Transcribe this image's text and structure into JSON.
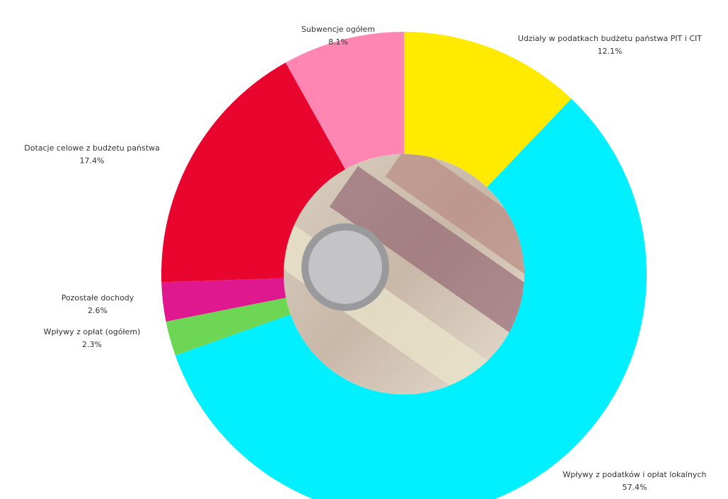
{
  "chart_data": {
    "type": "donut",
    "categories": [
      "Udziały w podatkach budżetu państwa PIT i CIT",
      "Wpływy z podatków i opłat lokalnych",
      "Wpływy z opłat (ogółem)",
      "Pozostałe dochody",
      "Dotacje celowe z budżetu państwa",
      "Subwencje ogółem"
    ],
    "values": [
      12.1,
      57.4,
      2.3,
      2.6,
      17.4,
      8.1
    ],
    "value_labels": [
      "12.1%",
      "57.4%",
      "2.3%",
      "2.6%",
      "17.4%",
      "8.1%"
    ],
    "colors": [
      "#ffea00",
      "#00f0ff",
      "#6ed655",
      "#e0188f",
      "#e8062f",
      "#ff86b2"
    ]
  }
}
